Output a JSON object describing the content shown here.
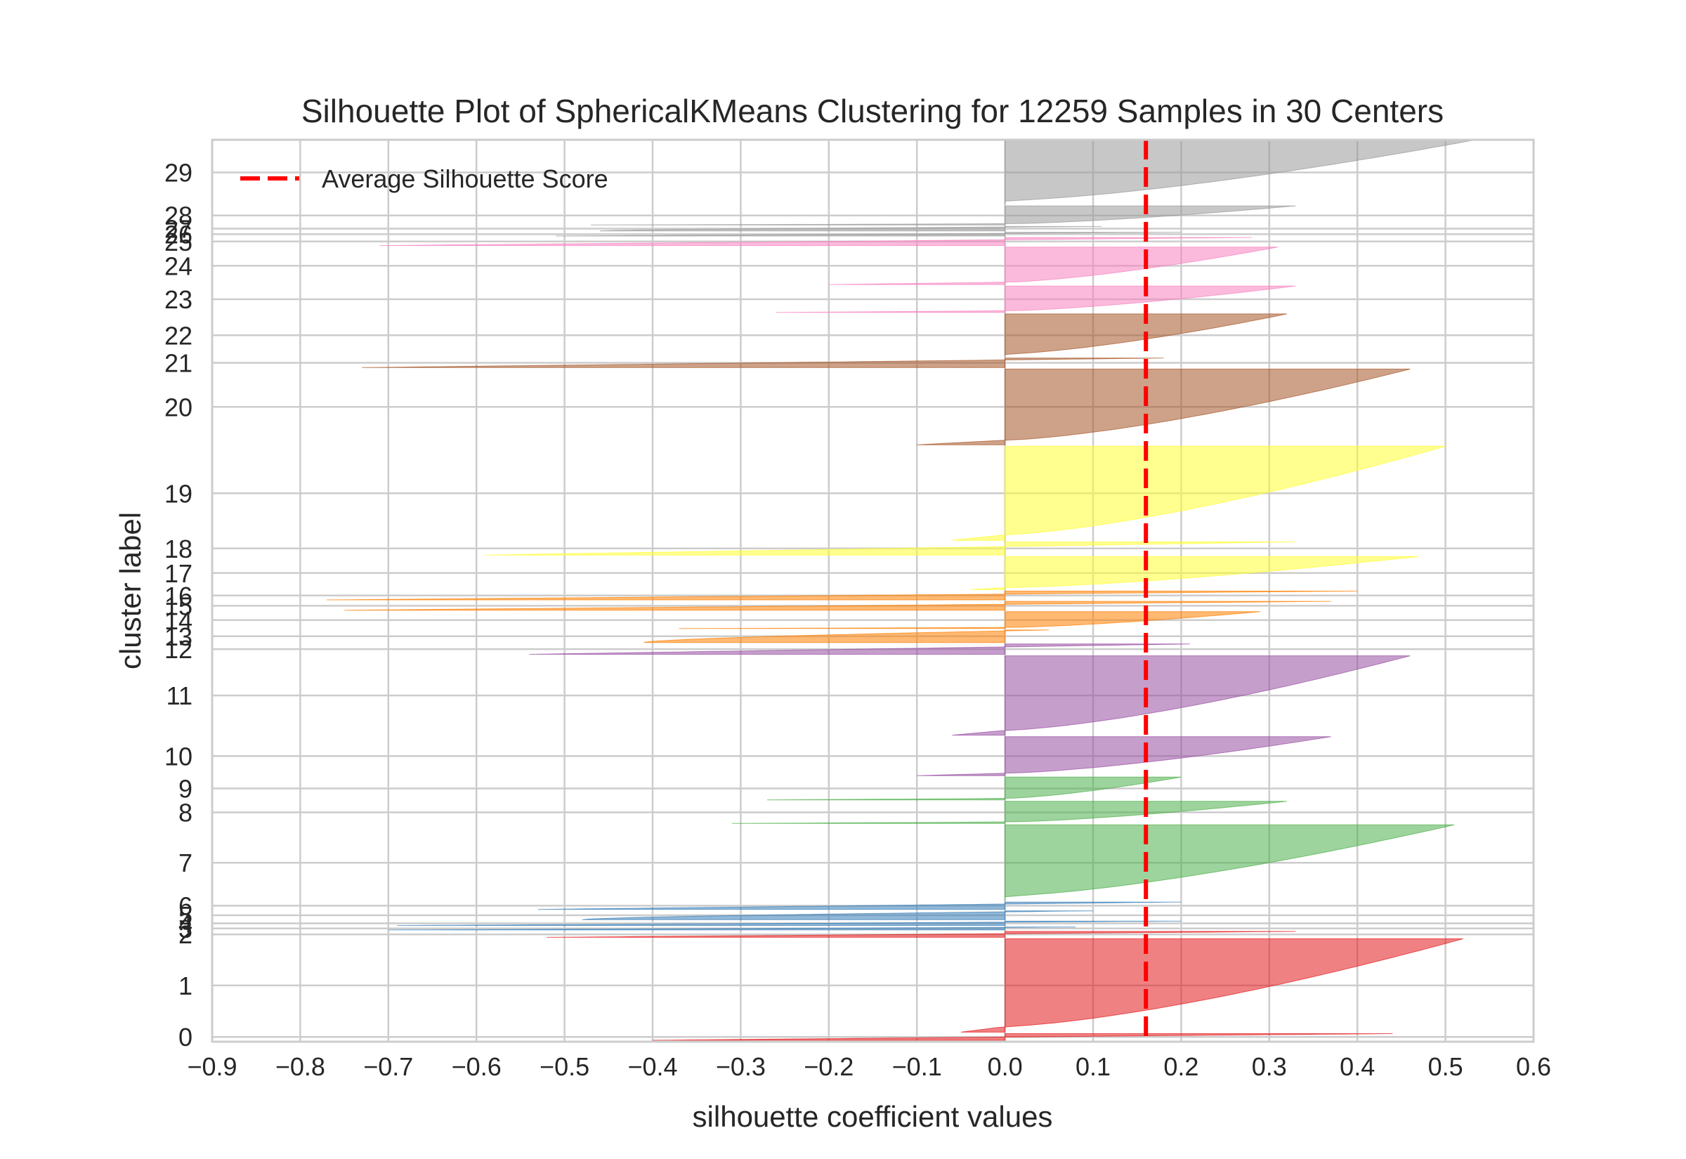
{
  "chart_data": {
    "type": "area",
    "title": "Silhouette Plot of SphericalKMeans Clustering for 12259 Samples in 30 Centers",
    "xlabel": "silhouette coefficient values",
    "ylabel": "cluster label",
    "xlim": [
      -0.9,
      0.6
    ],
    "ylim": [
      -10,
      12259
    ],
    "grid": true,
    "x_ticks": [
      -0.9,
      -0.8,
      -0.7,
      -0.6,
      -0.5,
      -0.4,
      -0.3,
      -0.2,
      -0.1,
      0.0,
      0.1,
      0.2,
      0.3,
      0.4,
      0.5,
      0.6
    ],
    "x_tick_labels": [
      "−0.9",
      "−0.8",
      "−0.7",
      "−0.6",
      "−0.5",
      "−0.4",
      "−0.3",
      "−0.2",
      "−0.1",
      "0.0",
      "0.1",
      "0.2",
      "0.3",
      "0.4",
      "0.5",
      "0.6"
    ],
    "average_silhouette_score": 0.16,
    "legend": {
      "label": "Average Silhouette Score",
      "placement": "top-left"
    },
    "average_line_color": "#ff0000",
    "clusters": [
      {
        "label": "0",
        "start": 0,
        "end": 110,
        "max": 0.44,
        "min": -0.4,
        "shape": "thin",
        "color": "#e41a1c"
      },
      {
        "label": "1",
        "start": 110,
        "end": 1400,
        "max": 0.52,
        "min": -0.05,
        "shape": "main",
        "color": "#e41a1c"
      },
      {
        "label": "2",
        "start": 1400,
        "end": 1500,
        "max": 0.33,
        "min": -0.52,
        "shape": "thin",
        "color": "#e41a1c"
      },
      {
        "label": "3",
        "start": 1500,
        "end": 1560,
        "max": 0.08,
        "min": -0.7,
        "shape": "thin",
        "color": "#377eb8"
      },
      {
        "label": "4",
        "start": 1560,
        "end": 1640,
        "max": 0.2,
        "min": -0.69,
        "shape": "thin",
        "color": "#377eb8"
      },
      {
        "label": "5",
        "start": 1640,
        "end": 1780,
        "max": 0.1,
        "min": -0.48,
        "shape": "neg",
        "color": "#377eb8"
      },
      {
        "label": "6",
        "start": 1780,
        "end": 1900,
        "max": 0.2,
        "min": -0.53,
        "shape": "thin",
        "color": "#377eb8"
      },
      {
        "label": "7",
        "start": 1900,
        "end": 2950,
        "max": 0.51,
        "min": 0.0,
        "shape": "main",
        "color": "#4daf4a"
      },
      {
        "label": "8",
        "start": 2950,
        "end": 3270,
        "max": 0.32,
        "min": -0.31,
        "shape": "main",
        "color": "#4daf4a"
      },
      {
        "label": "9",
        "start": 3270,
        "end": 3600,
        "max": 0.2,
        "min": -0.27,
        "shape": "main",
        "color": "#4daf4a"
      },
      {
        "label": "10",
        "start": 3600,
        "end": 4150,
        "max": 0.37,
        "min": -0.1,
        "shape": "main",
        "color": "#984ea3"
      },
      {
        "label": "11",
        "start": 4150,
        "end": 5250,
        "max": 0.46,
        "min": -0.06,
        "shape": "main",
        "color": "#984ea3"
      },
      {
        "label": "12",
        "start": 5250,
        "end": 5410,
        "max": 0.21,
        "min": -0.54,
        "shape": "thin",
        "color": "#984ea3"
      },
      {
        "label": "13",
        "start": 5410,
        "end": 5600,
        "max": 0.05,
        "min": -0.41,
        "shape": "neg",
        "color": "#ff7f00"
      },
      {
        "label": "14",
        "start": 5600,
        "end": 5850,
        "max": 0.29,
        "min": -0.37,
        "shape": "main",
        "color": "#ff7f00"
      },
      {
        "label": "15",
        "start": 5850,
        "end": 5990,
        "max": 0.37,
        "min": -0.75,
        "shape": "thin",
        "color": "#ff7f00"
      },
      {
        "label": "16",
        "start": 5990,
        "end": 6130,
        "max": 0.4,
        "min": -0.77,
        "shape": "thin",
        "color": "#ff7f00"
      },
      {
        "label": "17",
        "start": 6130,
        "end": 6600,
        "max": 0.47,
        "min": -0.04,
        "shape": "main",
        "color": "#ffff33"
      },
      {
        "label": "18",
        "start": 6600,
        "end": 6800,
        "max": 0.33,
        "min": -0.59,
        "shape": "thin",
        "color": "#ffff33"
      },
      {
        "label": "19",
        "start": 6800,
        "end": 8100,
        "max": 0.5,
        "min": -0.06,
        "shape": "main",
        "color": "#ffff33"
      },
      {
        "label": "20",
        "start": 8100,
        "end": 9150,
        "max": 0.46,
        "min": -0.1,
        "shape": "main",
        "color": "#a65628"
      },
      {
        "label": "21",
        "start": 9150,
        "end": 9300,
        "max": 0.18,
        "min": -0.73,
        "shape": "thin",
        "color": "#a65628"
      },
      {
        "label": "22",
        "start": 9300,
        "end": 9900,
        "max": 0.32,
        "min": 0.0,
        "shape": "main",
        "color": "#a65628"
      },
      {
        "label": "23",
        "start": 9900,
        "end": 10280,
        "max": 0.33,
        "min": -0.26,
        "shape": "main",
        "color": "#f781bf"
      },
      {
        "label": "24",
        "start": 10280,
        "end": 10810,
        "max": 0.31,
        "min": -0.2,
        "shape": "main",
        "color": "#f781bf"
      },
      {
        "label": "25",
        "start": 10810,
        "end": 10940,
        "max": 0.28,
        "min": -0.71,
        "shape": "thin",
        "color": "#f781bf"
      },
      {
        "label": "26",
        "start": 10940,
        "end": 11010,
        "max": 0.2,
        "min": -0.51,
        "shape": "thin",
        "color": "#999999"
      },
      {
        "label": "27",
        "start": 11010,
        "end": 11090,
        "max": 0.11,
        "min": -0.46,
        "shape": "neg",
        "color": "#999999"
      },
      {
        "label": "28",
        "start": 11090,
        "end": 11370,
        "max": 0.33,
        "min": -0.47,
        "shape": "main",
        "color": "#999999"
      },
      {
        "label": "29",
        "start": 11370,
        "end": 12259,
        "max": 0.53,
        "min": 0.0,
        "shape": "main",
        "color": "#999999"
      }
    ]
  }
}
